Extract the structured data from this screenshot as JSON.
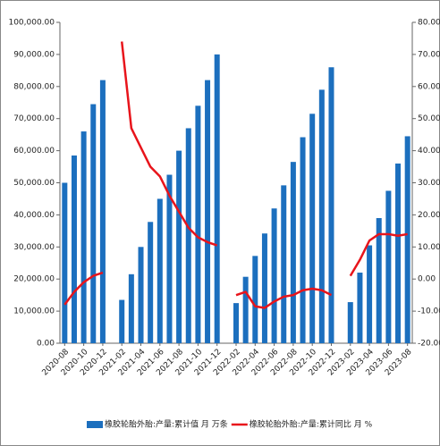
{
  "chart_data": {
    "type": "combo",
    "categories": [
      "2020-08",
      null,
      "2020-10",
      null,
      "2020-12",
      null,
      "2021-02",
      null,
      "2021-04",
      null,
      "2021-06",
      null,
      "2021-08",
      null,
      "2021-10",
      null,
      "2021-12",
      null,
      "2022-02",
      null,
      "2022-04",
      null,
      "2022-06",
      null,
      "2022-08",
      null,
      "2022-10",
      null,
      "2022-12",
      null,
      "2023-02",
      null,
      "2023-04",
      null,
      "2023-06",
      null,
      "2023-08"
    ],
    "series": [
      {
        "name": "橡胶轮胎外胎:产量:累计值 月 万条",
        "type": "bar",
        "color": "#1c6fbe",
        "values": [
          50000,
          58500,
          66000,
          74500,
          82000,
          null,
          13500,
          21500,
          30000,
          37800,
          45000,
          52500,
          60000,
          67000,
          74000,
          82000,
          90000,
          null,
          12500,
          20700,
          27200,
          34200,
          42000,
          49200,
          56500,
          64200,
          71500,
          79000,
          86000,
          null,
          12800,
          22000,
          30500,
          39000,
          47500,
          56000,
          64500
        ]
      },
      {
        "name": "橡胶轮胎外胎:产量:累计同比 月 %",
        "type": "line",
        "axis": "y2",
        "color": "#e8141b",
        "values": [
          -8,
          -4,
          -1,
          1,
          2,
          null,
          74,
          47,
          41,
          35,
          32,
          26,
          21,
          16,
          13,
          11.5,
          10.5,
          null,
          -5,
          -4,
          -8.5,
          -9,
          -7,
          -5.5,
          -5,
          -3.5,
          -3,
          -3.5,
          -5,
          null,
          1,
          6,
          12,
          14,
          14,
          13.5,
          14
        ]
      }
    ],
    "ylim": [
      0,
      100000
    ],
    "yticks": [
      {
        "value": 0,
        "label": "0.00"
      },
      {
        "value": 10000,
        "label": "10,000.00"
      },
      {
        "value": 20000,
        "label": "20,000.00"
      },
      {
        "value": 30000,
        "label": "30,000.00"
      },
      {
        "value": 40000,
        "label": "40,000.00"
      },
      {
        "value": 50000,
        "label": "50,000.00"
      },
      {
        "value": 60000,
        "label": "60,000.00"
      },
      {
        "value": 70000,
        "label": "70,000.00"
      },
      {
        "value": 80000,
        "label": "80,000.00"
      },
      {
        "value": 90000,
        "label": "90,000.00"
      },
      {
        "value": 100000,
        "label": "100,000.00"
      }
    ],
    "y2lim": [
      -20,
      80
    ],
    "y2ticks": [
      {
        "value": -20,
        "label": "-20.00"
      },
      {
        "value": -10,
        "label": "-10.00"
      },
      {
        "value": 0,
        "label": "0.00"
      },
      {
        "value": 10,
        "label": "10.00"
      },
      {
        "value": 20,
        "label": "20.00"
      },
      {
        "value": 30,
        "label": "30.00"
      },
      {
        "value": 40,
        "label": "40.00"
      },
      {
        "value": 50,
        "label": "50.00"
      },
      {
        "value": 60,
        "label": "60.00"
      },
      {
        "value": 70,
        "label": "70.00"
      },
      {
        "value": 80,
        "label": "80.00"
      }
    ]
  }
}
